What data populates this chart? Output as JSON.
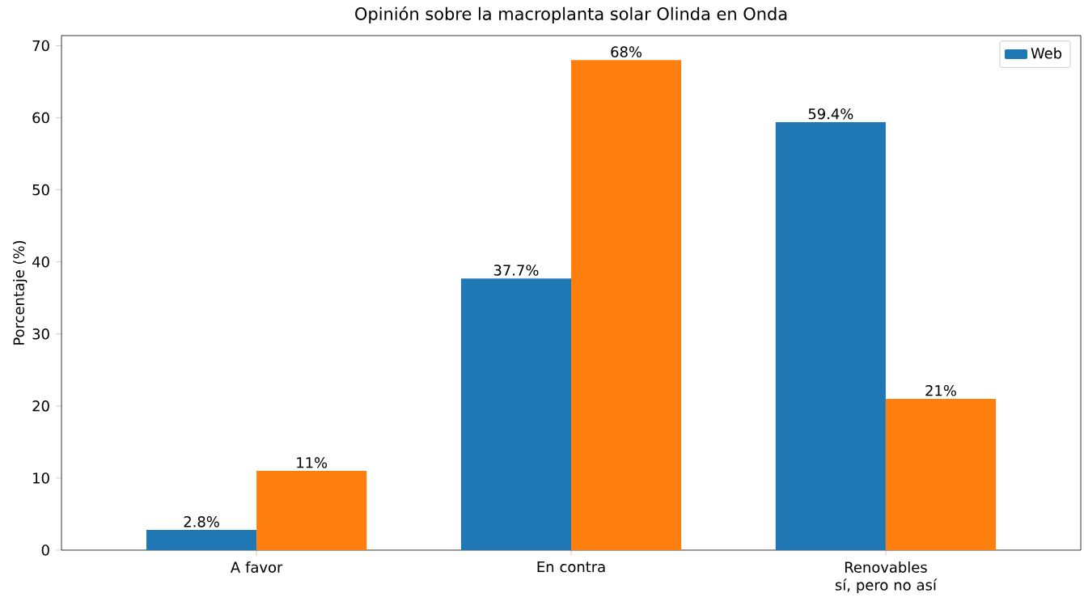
{
  "chart_data": {
    "type": "bar",
    "title": "Opinión sobre la macroplanta solar Olinda en Onda",
    "ylabel": "Porcentaje (%)",
    "categories": [
      "A favor",
      "En contra",
      "Renovables sí, pero no así"
    ],
    "series": [
      {
        "name": "Web",
        "color": "#1f77b4",
        "values": [
          2.8,
          37.7,
          59.4
        ],
        "value_labels": [
          "2.8%",
          "37.7%",
          "59.4%"
        ]
      },
      {
        "color": "#ff7f0e",
        "values": [
          11,
          68,
          21
        ],
        "value_labels": [
          "11%",
          "68%",
          "21%"
        ]
      }
    ],
    "ylim": [
      0,
      71.4
    ],
    "yticks": [
      0,
      10,
      20,
      30,
      40,
      50,
      60,
      70
    ],
    "grid": false,
    "legend": "top right"
  }
}
